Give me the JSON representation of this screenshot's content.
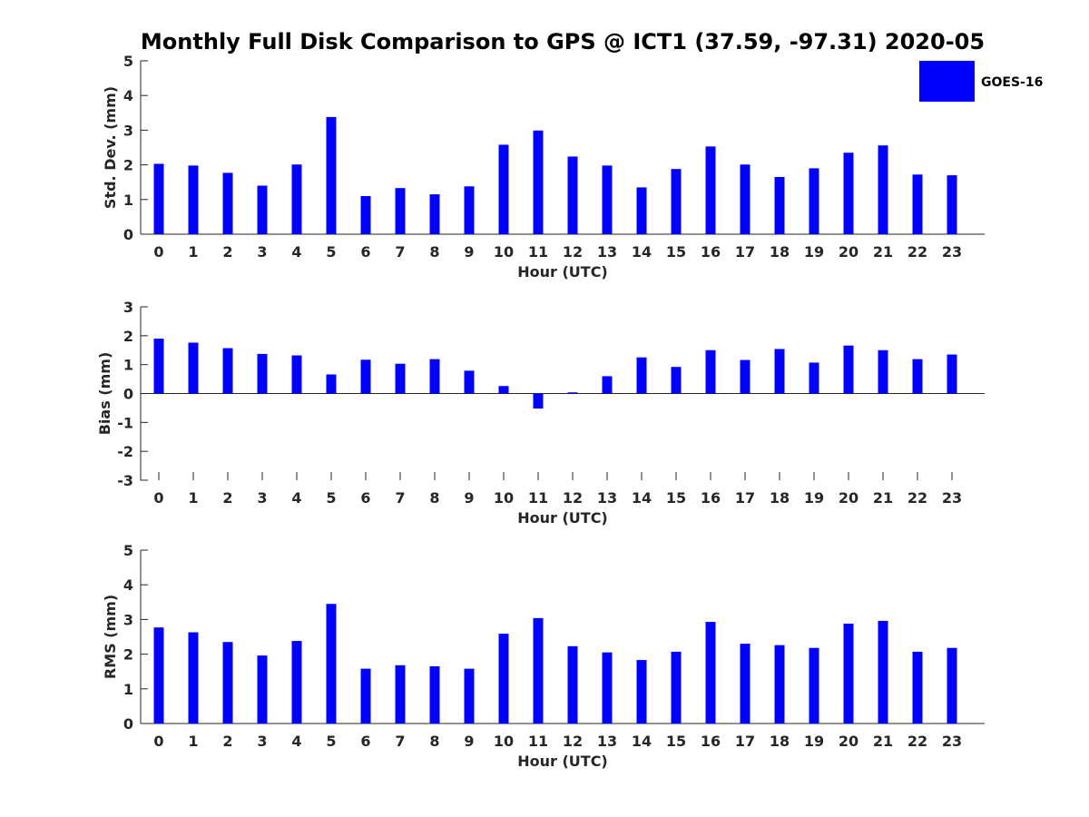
{
  "title": "Monthly Full Disk Comparison to GPS @ ICT1 (37.59, -97.31) 2020-05",
  "legend": {
    "label": "GOES-16",
    "color": "#0000FF"
  },
  "chart_data": [
    {
      "type": "bar",
      "xlabel": "Hour (UTC)",
      "ylabel": "Std. Dev. (mm)",
      "categories": [
        "0",
        "1",
        "2",
        "3",
        "4",
        "5",
        "6",
        "7",
        "8",
        "9",
        "10",
        "11",
        "12",
        "13",
        "14",
        "15",
        "16",
        "17",
        "18",
        "19",
        "20",
        "21",
        "22",
        "23"
      ],
      "ylim": [
        0,
        5
      ],
      "yticks": [
        0,
        1,
        2,
        3,
        4,
        5
      ],
      "series": [
        {
          "name": "GOES-16",
          "color": "#0000FF",
          "values": [
            2.03,
            1.98,
            1.77,
            1.4,
            2.01,
            3.38,
            1.1,
            1.33,
            1.15,
            1.38,
            2.58,
            2.99,
            2.24,
            1.98,
            1.35,
            1.88,
            2.53,
            2.01,
            1.65,
            1.9,
            2.35,
            2.56,
            1.72,
            1.7
          ]
        }
      ]
    },
    {
      "type": "bar",
      "xlabel": "Hour (UTC)",
      "ylabel": "Bias (mm)",
      "categories": [
        "0",
        "1",
        "2",
        "3",
        "4",
        "5",
        "6",
        "7",
        "8",
        "9",
        "10",
        "11",
        "12",
        "13",
        "14",
        "15",
        "16",
        "17",
        "18",
        "19",
        "20",
        "21",
        "22",
        "23"
      ],
      "ylim": [
        -3,
        3
      ],
      "yticks": [
        -3,
        -2,
        -1,
        0,
        1,
        2,
        3
      ],
      "series": [
        {
          "name": "GOES-16",
          "color": "#0000FF",
          "values": [
            1.9,
            1.76,
            1.57,
            1.37,
            1.32,
            0.66,
            1.17,
            1.03,
            1.19,
            0.79,
            0.26,
            -0.52,
            0.04,
            0.6,
            1.25,
            0.92,
            1.5,
            1.16,
            1.54,
            1.07,
            1.66,
            1.5,
            1.19,
            1.35
          ]
        }
      ]
    },
    {
      "type": "bar",
      "xlabel": "Hour (UTC)",
      "ylabel": "RMS (mm)",
      "categories": [
        "0",
        "1",
        "2",
        "3",
        "4",
        "5",
        "6",
        "7",
        "8",
        "9",
        "10",
        "11",
        "12",
        "13",
        "14",
        "15",
        "16",
        "17",
        "18",
        "19",
        "20",
        "21",
        "22",
        "23"
      ],
      "ylim": [
        0,
        5
      ],
      "yticks": [
        0,
        1,
        2,
        3,
        4,
        5
      ],
      "series": [
        {
          "name": "GOES-16",
          "color": "#0000FF",
          "values": [
            2.77,
            2.63,
            2.35,
            1.96,
            2.38,
            3.45,
            1.58,
            1.68,
            1.65,
            1.58,
            2.59,
            3.04,
            2.23,
            2.05,
            1.83,
            2.07,
            2.93,
            2.3,
            2.26,
            2.18,
            2.88,
            2.96,
            2.07,
            2.18
          ]
        }
      ]
    }
  ]
}
